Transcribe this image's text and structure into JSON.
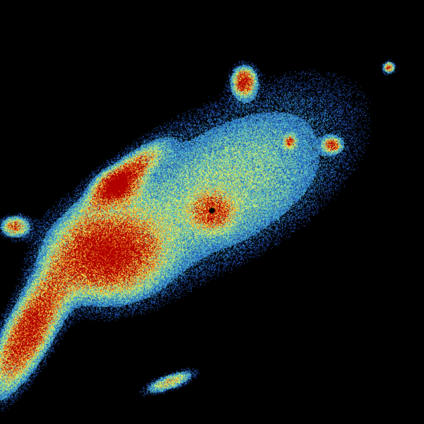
{
  "image": {
    "kind": "weather radar reflectivity scan",
    "background_color": "#000000",
    "color_scale": [
      "#2050b0",
      "#3090c8",
      "#60c0c0",
      "#a0e080",
      "#e8f060",
      "#f0c030",
      "#f08020",
      "#d02000",
      "#b00000"
    ]
  }
}
